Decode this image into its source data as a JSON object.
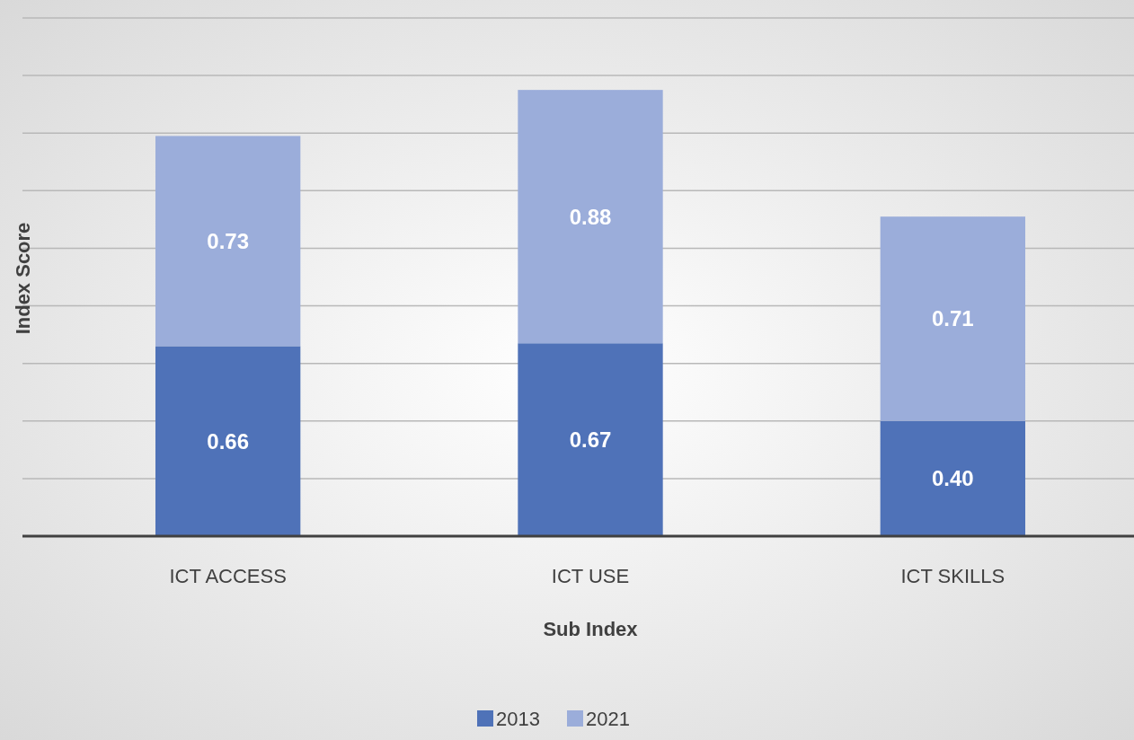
{
  "chart_data": {
    "type": "bar",
    "stacked": true,
    "xlabel": "Sub Index",
    "ylabel": "Index Score",
    "categories": [
      "ICT ACCESS",
      "ICT USE",
      "ICT SKILLS"
    ],
    "series": [
      {
        "name": "2013",
        "color": "#4f72b8",
        "values": [
          0.66,
          0.67,
          0.4
        ],
        "value_labels": [
          "0.66",
          "0.67",
          "0.40"
        ]
      },
      {
        "name": "2021",
        "color": "#9badda",
        "values": [
          0.73,
          0.88,
          0.71
        ],
        "value_labels": [
          "0.73",
          "0.88",
          "0.71"
        ]
      }
    ],
    "ylim": [
      0,
      1.8
    ],
    "yticks": [
      {
        "value": 0,
        "label": null
      },
      {
        "value": 0.2,
        "label": null
      },
      {
        "value": 0.4,
        "label": null
      },
      {
        "value": 0.6,
        "label": null
      },
      {
        "value": 0.8,
        "label": null
      },
      {
        "value": 1.0,
        "label": null
      },
      {
        "value": 1.2,
        "label": null
      },
      {
        "value": 1.4,
        "label": null
      },
      {
        "value": 1.6,
        "label": null
      },
      {
        "value": 1.8,
        "label": null
      }
    ],
    "tick_labels": "x",
    "grid": "y",
    "legend": "bottom"
  }
}
